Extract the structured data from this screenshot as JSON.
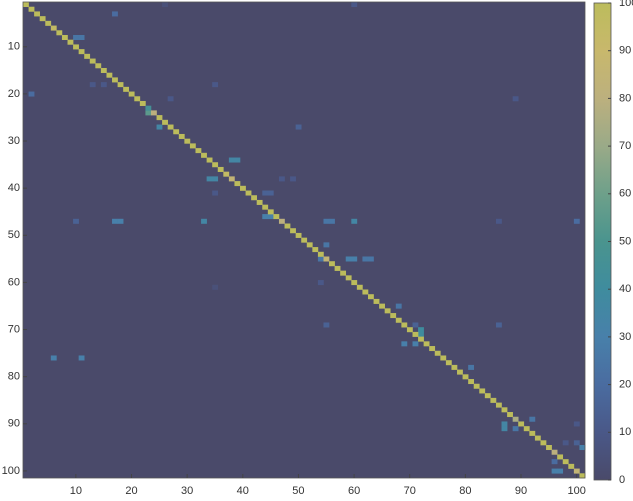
{
  "chart_data": {
    "type": "heatmap",
    "xlim": [
      0.5,
      101.5
    ],
    "ylim": [
      0.5,
      101.5
    ],
    "xticks": [
      10,
      20,
      30,
      40,
      50,
      60,
      70,
      80,
      90,
      100
    ],
    "yticks": [
      10,
      20,
      30,
      40,
      50,
      60,
      70,
      80,
      90,
      100
    ],
    "clim": [
      0,
      100
    ],
    "cticks": [
      0,
      10,
      20,
      30,
      40,
      50,
      60,
      70,
      80,
      90,
      100
    ],
    "colormap": [
      "#4a4a6a",
      "#4a5888",
      "#4a6ca0",
      "#4880aa",
      "#3f8c9e",
      "#4a948e",
      "#6ea08a",
      "#9aaa88",
      "#bcb07e",
      "#c8b86c",
      "#bcbc5c"
    ],
    "diagonal": [
      100,
      100,
      100,
      100,
      100,
      95,
      100,
      100,
      100,
      100,
      100,
      100,
      100,
      100,
      100,
      100,
      100,
      100,
      100,
      100,
      100,
      100,
      45,
      80,
      100,
      100,
      100,
      100,
      100,
      100,
      100,
      100,
      100,
      100,
      100,
      100,
      95,
      85,
      100,
      100,
      100,
      100,
      100,
      100,
      100,
      100,
      80,
      100,
      100,
      100,
      100,
      100,
      100,
      100,
      85,
      100,
      100,
      100,
      100,
      100,
      100,
      100,
      100,
      100,
      100,
      100,
      100,
      100,
      100,
      100,
      100,
      100,
      100,
      100,
      100,
      100,
      100,
      100,
      100,
      100,
      100,
      100,
      100,
      100,
      100,
      100,
      100,
      100,
      75,
      100,
      100,
      100,
      100,
      100,
      100,
      80,
      100,
      100,
      100,
      85,
      100
    ],
    "cells": [
      {
        "row": 1,
        "col": 60,
        "value": 10
      },
      {
        "row": 1,
        "col": 26,
        "value": 5
      },
      {
        "row": 3,
        "col": 17,
        "value": 20
      },
      {
        "row": 8,
        "col": 10,
        "value": 25
      },
      {
        "row": 8,
        "col": 11,
        "value": 25
      },
      {
        "row": 20,
        "col": 2,
        "value": 20
      },
      {
        "row": 18,
        "col": 13,
        "value": 10
      },
      {
        "row": 18,
        "col": 15,
        "value": 10
      },
      {
        "row": 18,
        "col": 35,
        "value": 10
      },
      {
        "row": 21,
        "col": 27,
        "value": 10
      },
      {
        "row": 21,
        "col": 89,
        "value": 10
      },
      {
        "row": 24,
        "col": 23,
        "value": 55
      },
      {
        "row": 27,
        "col": 25,
        "value": 35
      },
      {
        "row": 27,
        "col": 50,
        "value": 15
      },
      {
        "row": 34,
        "col": 38,
        "value": 35
      },
      {
        "row": 34,
        "col": 39,
        "value": 35
      },
      {
        "row": 38,
        "col": 34,
        "value": 35
      },
      {
        "row": 38,
        "col": 35,
        "value": 35
      },
      {
        "row": 38,
        "col": 47,
        "value": 10
      },
      {
        "row": 38,
        "col": 49,
        "value": 10
      },
      {
        "row": 41,
        "col": 44,
        "value": 15
      },
      {
        "row": 41,
        "col": 45,
        "value": 15
      },
      {
        "row": 41,
        "col": 35,
        "value": 10
      },
      {
        "row": 46,
        "col": 44,
        "value": 30
      },
      {
        "row": 46,
        "col": 45,
        "value": 30
      },
      {
        "row": 47,
        "col": 17,
        "value": 30
      },
      {
        "row": 47,
        "col": 18,
        "value": 30
      },
      {
        "row": 47,
        "col": 10,
        "value": 15
      },
      {
        "row": 47,
        "col": 33,
        "value": 35
      },
      {
        "row": 47,
        "col": 55,
        "value": 25
      },
      {
        "row": 47,
        "col": 56,
        "value": 25
      },
      {
        "row": 47,
        "col": 60,
        "value": 35
      },
      {
        "row": 47,
        "col": 86,
        "value": 10
      },
      {
        "row": 47,
        "col": 100,
        "value": 20
      },
      {
        "row": 52,
        "col": 55,
        "value": 25
      },
      {
        "row": 55,
        "col": 54,
        "value": 25
      },
      {
        "row": 55,
        "col": 59,
        "value": 30
      },
      {
        "row": 55,
        "col": 60,
        "value": 30
      },
      {
        "row": 55,
        "col": 62,
        "value": 25
      },
      {
        "row": 55,
        "col": 63,
        "value": 25
      },
      {
        "row": 60,
        "col": 54,
        "value": 10
      },
      {
        "row": 61,
        "col": 35,
        "value": 5
      },
      {
        "row": 65,
        "col": 68,
        "value": 25
      },
      {
        "row": 69,
        "col": 71,
        "value": 15
      },
      {
        "row": 69,
        "col": 55,
        "value": 15
      },
      {
        "row": 70,
        "col": 72,
        "value": 40
      },
      {
        "row": 71,
        "col": 72,
        "value": 40
      },
      {
        "row": 73,
        "col": 69,
        "value": 30
      },
      {
        "row": 73,
        "col": 71,
        "value": 30
      },
      {
        "row": 76,
        "col": 6,
        "value": 30
      },
      {
        "row": 76,
        "col": 11,
        "value": 30
      },
      {
        "row": 78,
        "col": 81,
        "value": 25
      },
      {
        "row": 69,
        "col": 86,
        "value": 15
      },
      {
        "row": 90,
        "col": 87,
        "value": 35
      },
      {
        "row": 91,
        "col": 87,
        "value": 35
      },
      {
        "row": 89,
        "col": 92,
        "value": 25
      },
      {
        "row": 91,
        "col": 89,
        "value": 25
      },
      {
        "row": 90,
        "col": 100,
        "value": 10
      },
      {
        "row": 94,
        "col": 98,
        "value": 10
      },
      {
        "row": 94,
        "col": 100,
        "value": 15
      },
      {
        "row": 95,
        "col": 101,
        "value": 30
      },
      {
        "row": 98,
        "col": 96,
        "value": 20
      },
      {
        "row": 100,
        "col": 96,
        "value": 30
      },
      {
        "row": 100,
        "col": 97,
        "value": 30
      }
    ]
  }
}
